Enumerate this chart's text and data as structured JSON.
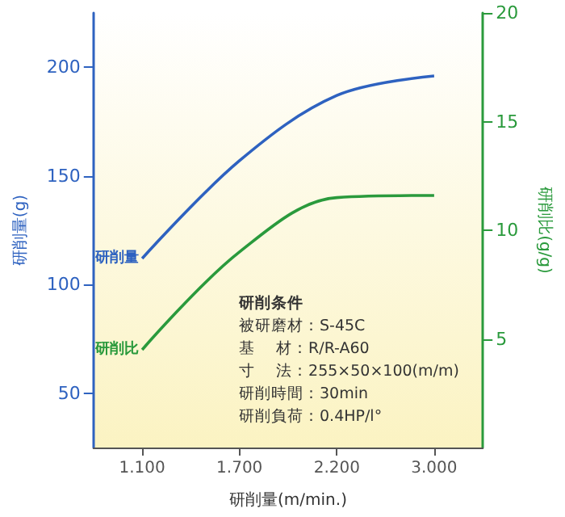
{
  "chart_data": {
    "type": "line",
    "xlabel": "研削量(m/min.)",
    "ylabel": "研削量(g)",
    "y2label": "研削比(g/g)",
    "categories": [
      "1.100",
      "1.700",
      "2.200",
      "3.000"
    ],
    "series": [
      {
        "name": "研削量",
        "color": "#2e62c0",
        "values": [
          112,
          157,
          187,
          196
        ]
      },
      {
        "name": "研削比",
        "color": "#2a9a3c",
        "axis": "y2",
        "values": [
          4.5,
          9.0,
          11.5,
          11.6
        ]
      }
    ],
    "ylim": [
      25,
      225
    ],
    "yticks": [
      50,
      100,
      150,
      200
    ],
    "y2lim": [
      0,
      20
    ],
    "y2ticks": [
      5,
      10,
      15,
      20
    ],
    "annotations": [
      "研削条件",
      "被研磨材：S-45C",
      "基　 材：R/R-A60",
      "寸　 法：255×50×100(m/m)",
      "研削時間：30min",
      "研削負荷：0.4HP/l°"
    ],
    "grid": false,
    "legend": false,
    "marker": "none",
    "line_style": "solid"
  }
}
